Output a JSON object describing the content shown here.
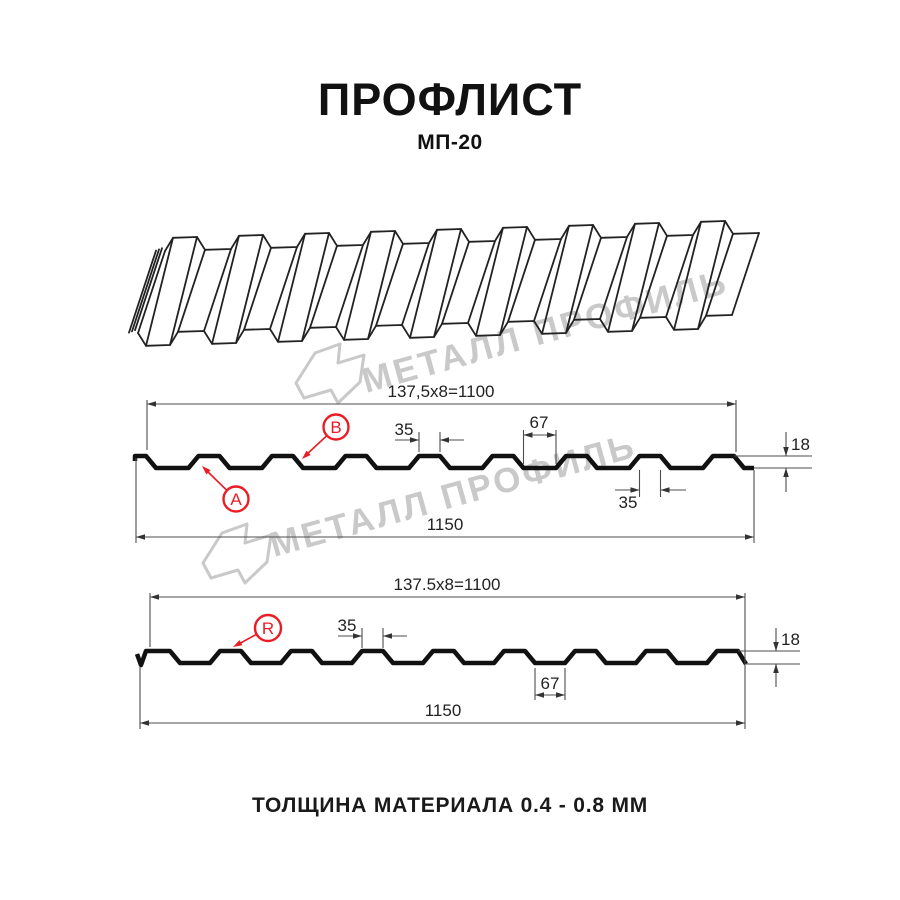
{
  "title": "ПРОФЛИСТ",
  "subtitle": "МП-20",
  "caption": "ТОЛЩИНА МАТЕРИАЛА 0.4 - 0.8 ММ",
  "brand_watermark": {
    "name": "МЕТАЛЛ ПРОФИЛЬ"
  },
  "colors": {
    "accent_red": "#EC1C24",
    "line_black": "#1A1A1A",
    "dim_gray": "#4D4D4D",
    "watermark_gray": "#C9C9C9",
    "background": "#FFFFFF"
  },
  "cross_section_top": {
    "module_width": "137,5x8=1100",
    "crest_top_width": "35",
    "valley_width": "67",
    "profile_height": "18",
    "crest_base_width": "35",
    "overall_width": "1150",
    "side_label_a": "A",
    "side_label_b": "B"
  },
  "cross_section_bottom": {
    "module_width": "137.5x8=1100",
    "crest_top_width": "35",
    "valley_width": "67",
    "profile_height": "18",
    "overall_width": "1150",
    "bend_label": "R"
  }
}
